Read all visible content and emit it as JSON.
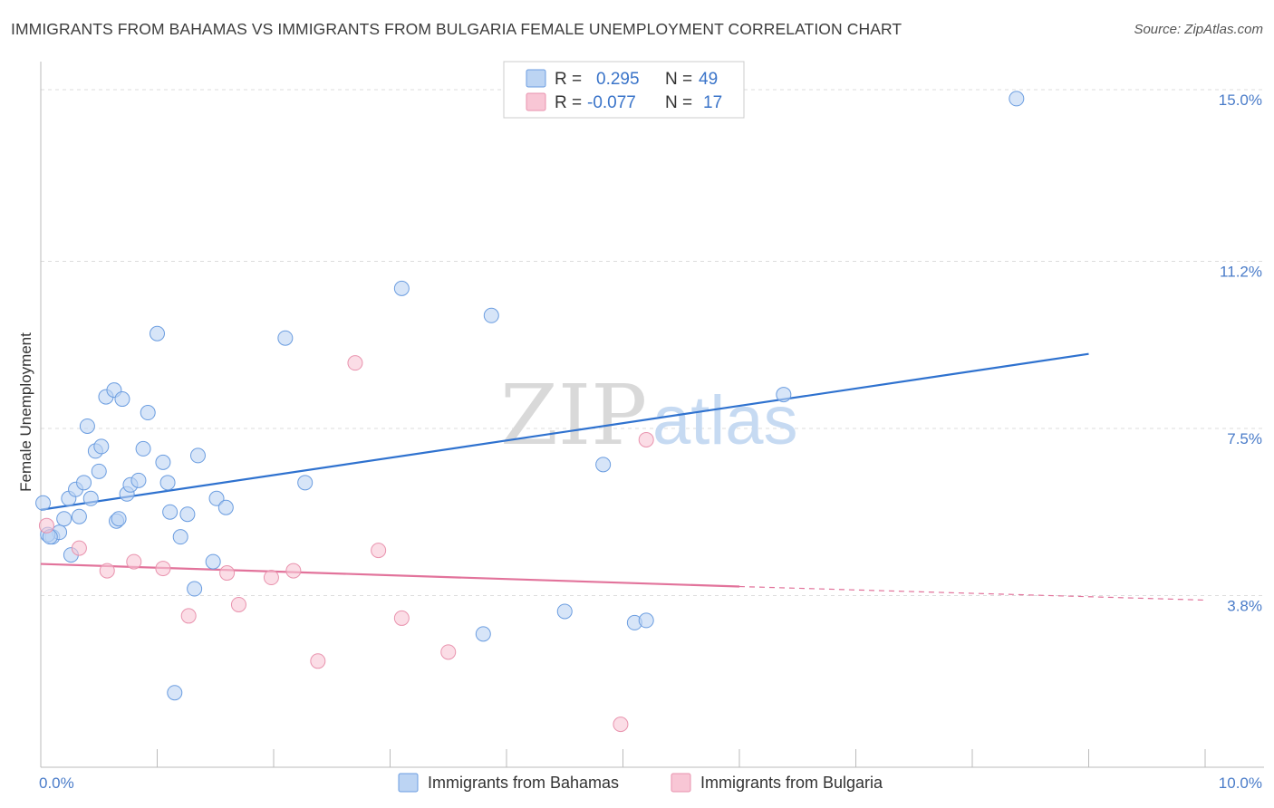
{
  "header": {
    "title": "IMMIGRANTS FROM BAHAMAS VS IMMIGRANTS FROM BULGARIA FEMALE UNEMPLOYMENT CORRELATION CHART",
    "source": "Source: ZipAtlas.com"
  },
  "watermark": {
    "zip": "ZIP",
    "atlas": "atlas"
  },
  "colors": {
    "bahamas_fill": "#bcd4f3",
    "bahamas_stroke": "#6b9de0",
    "bahamas_line": "#2f72cf",
    "bulgaria_fill": "#f8c6d5",
    "bulgaria_stroke": "#e993ae",
    "bulgaria_line": "#e2739b",
    "tick_label": "#4a7cc9",
    "grid": "#dddddd"
  },
  "legend": {
    "rows": [
      {
        "r_label": "R =",
        "r_value": "0.295",
        "n_label": "N =",
        "n_value": "49"
      },
      {
        "r_label": "R =",
        "r_value": "-0.077",
        "n_label": "N =",
        "n_value": "17"
      }
    ]
  },
  "chart_data": {
    "type": "scatter",
    "title": "IMMIGRANTS FROM BAHAMAS VS IMMIGRANTS FROM BULGARIA FEMALE UNEMPLOYMENT CORRELATION CHART",
    "xlabel": "",
    "ylabel": "Female Unemployment",
    "xlim": [
      0,
      10
    ],
    "ylim": [
      0,
      15.4
    ],
    "x_tick_labels": [
      {
        "value": 0,
        "label": "0.0%"
      },
      {
        "value": 10,
        "label": "10.0%"
      }
    ],
    "y_tick_labels": [
      {
        "value": 3.8,
        "label": "3.8%"
      },
      {
        "value": 7.5,
        "label": "7.5%"
      },
      {
        "value": 11.2,
        "label": "11.2%"
      },
      {
        "value": 15.0,
        "label": "15.0%"
      }
    ],
    "grid": true,
    "legend_position": "top-center",
    "series": [
      {
        "name": "Immigrants from Bahamas",
        "r": 0.295,
        "n": 49,
        "trend": {
          "x": [
            0,
            9.0
          ],
          "y": [
            5.7,
            9.15
          ],
          "style": "solid"
        },
        "points": [
          [
            0.02,
            5.85
          ],
          [
            0.1,
            5.1
          ],
          [
            0.16,
            5.2
          ],
          [
            0.2,
            5.5
          ],
          [
            0.24,
            5.95
          ],
          [
            0.26,
            4.7
          ],
          [
            0.3,
            6.15
          ],
          [
            0.33,
            5.55
          ],
          [
            0.37,
            6.3
          ],
          [
            0.4,
            7.55
          ],
          [
            0.43,
            5.95
          ],
          [
            0.47,
            7.0
          ],
          [
            0.5,
            6.55
          ],
          [
            0.52,
            7.1
          ],
          [
            0.56,
            8.2
          ],
          [
            0.63,
            8.35
          ],
          [
            0.65,
            5.45
          ],
          [
            0.67,
            5.5
          ],
          [
            0.7,
            8.15
          ],
          [
            0.74,
            6.05
          ],
          [
            0.77,
            6.25
          ],
          [
            0.84,
            6.35
          ],
          [
            0.88,
            7.05
          ],
          [
            0.92,
            7.85
          ],
          [
            1.0,
            9.6
          ],
          [
            1.05,
            6.75
          ],
          [
            1.09,
            6.3
          ],
          [
            1.11,
            5.65
          ],
          [
            1.15,
            1.65
          ],
          [
            1.2,
            5.1
          ],
          [
            1.26,
            5.6
          ],
          [
            1.32,
            3.95
          ],
          [
            1.35,
            6.9
          ],
          [
            1.48,
            4.55
          ],
          [
            1.51,
            5.95
          ],
          [
            1.59,
            5.75
          ],
          [
            2.1,
            9.5
          ],
          [
            2.27,
            6.3
          ],
          [
            3.1,
            10.6
          ],
          [
            3.8,
            2.95
          ],
          [
            3.87,
            10.0
          ],
          [
            4.5,
            3.45
          ],
          [
            4.83,
            6.7
          ],
          [
            5.1,
            3.2
          ],
          [
            5.2,
            3.25
          ],
          [
            6.38,
            8.25
          ],
          [
            8.38,
            14.8
          ],
          [
            0.06,
            5.15
          ],
          [
            0.08,
            5.1
          ]
        ]
      },
      {
        "name": "Immigrants from Bulgaria",
        "r": -0.077,
        "n": 17,
        "trend": {
          "x": [
            0,
            6.0
          ],
          "y": [
            4.5,
            4.0
          ],
          "style": "solid"
        },
        "trend_extension": {
          "x": [
            6.0,
            10.0
          ],
          "y": [
            4.0,
            3.7
          ],
          "style": "dashed"
        },
        "points": [
          [
            0.05,
            5.35
          ],
          [
            0.33,
            4.85
          ],
          [
            0.57,
            4.35
          ],
          [
            0.8,
            4.55
          ],
          [
            1.05,
            4.4
          ],
          [
            1.27,
            3.35
          ],
          [
            1.6,
            4.3
          ],
          [
            1.7,
            3.6
          ],
          [
            1.98,
            4.2
          ],
          [
            2.17,
            4.35
          ],
          [
            2.38,
            2.35
          ],
          [
            2.7,
            8.95
          ],
          [
            2.9,
            4.8
          ],
          [
            3.1,
            3.3
          ],
          [
            3.5,
            2.55
          ],
          [
            4.98,
            0.95
          ],
          [
            5.2,
            7.25
          ]
        ]
      }
    ]
  }
}
